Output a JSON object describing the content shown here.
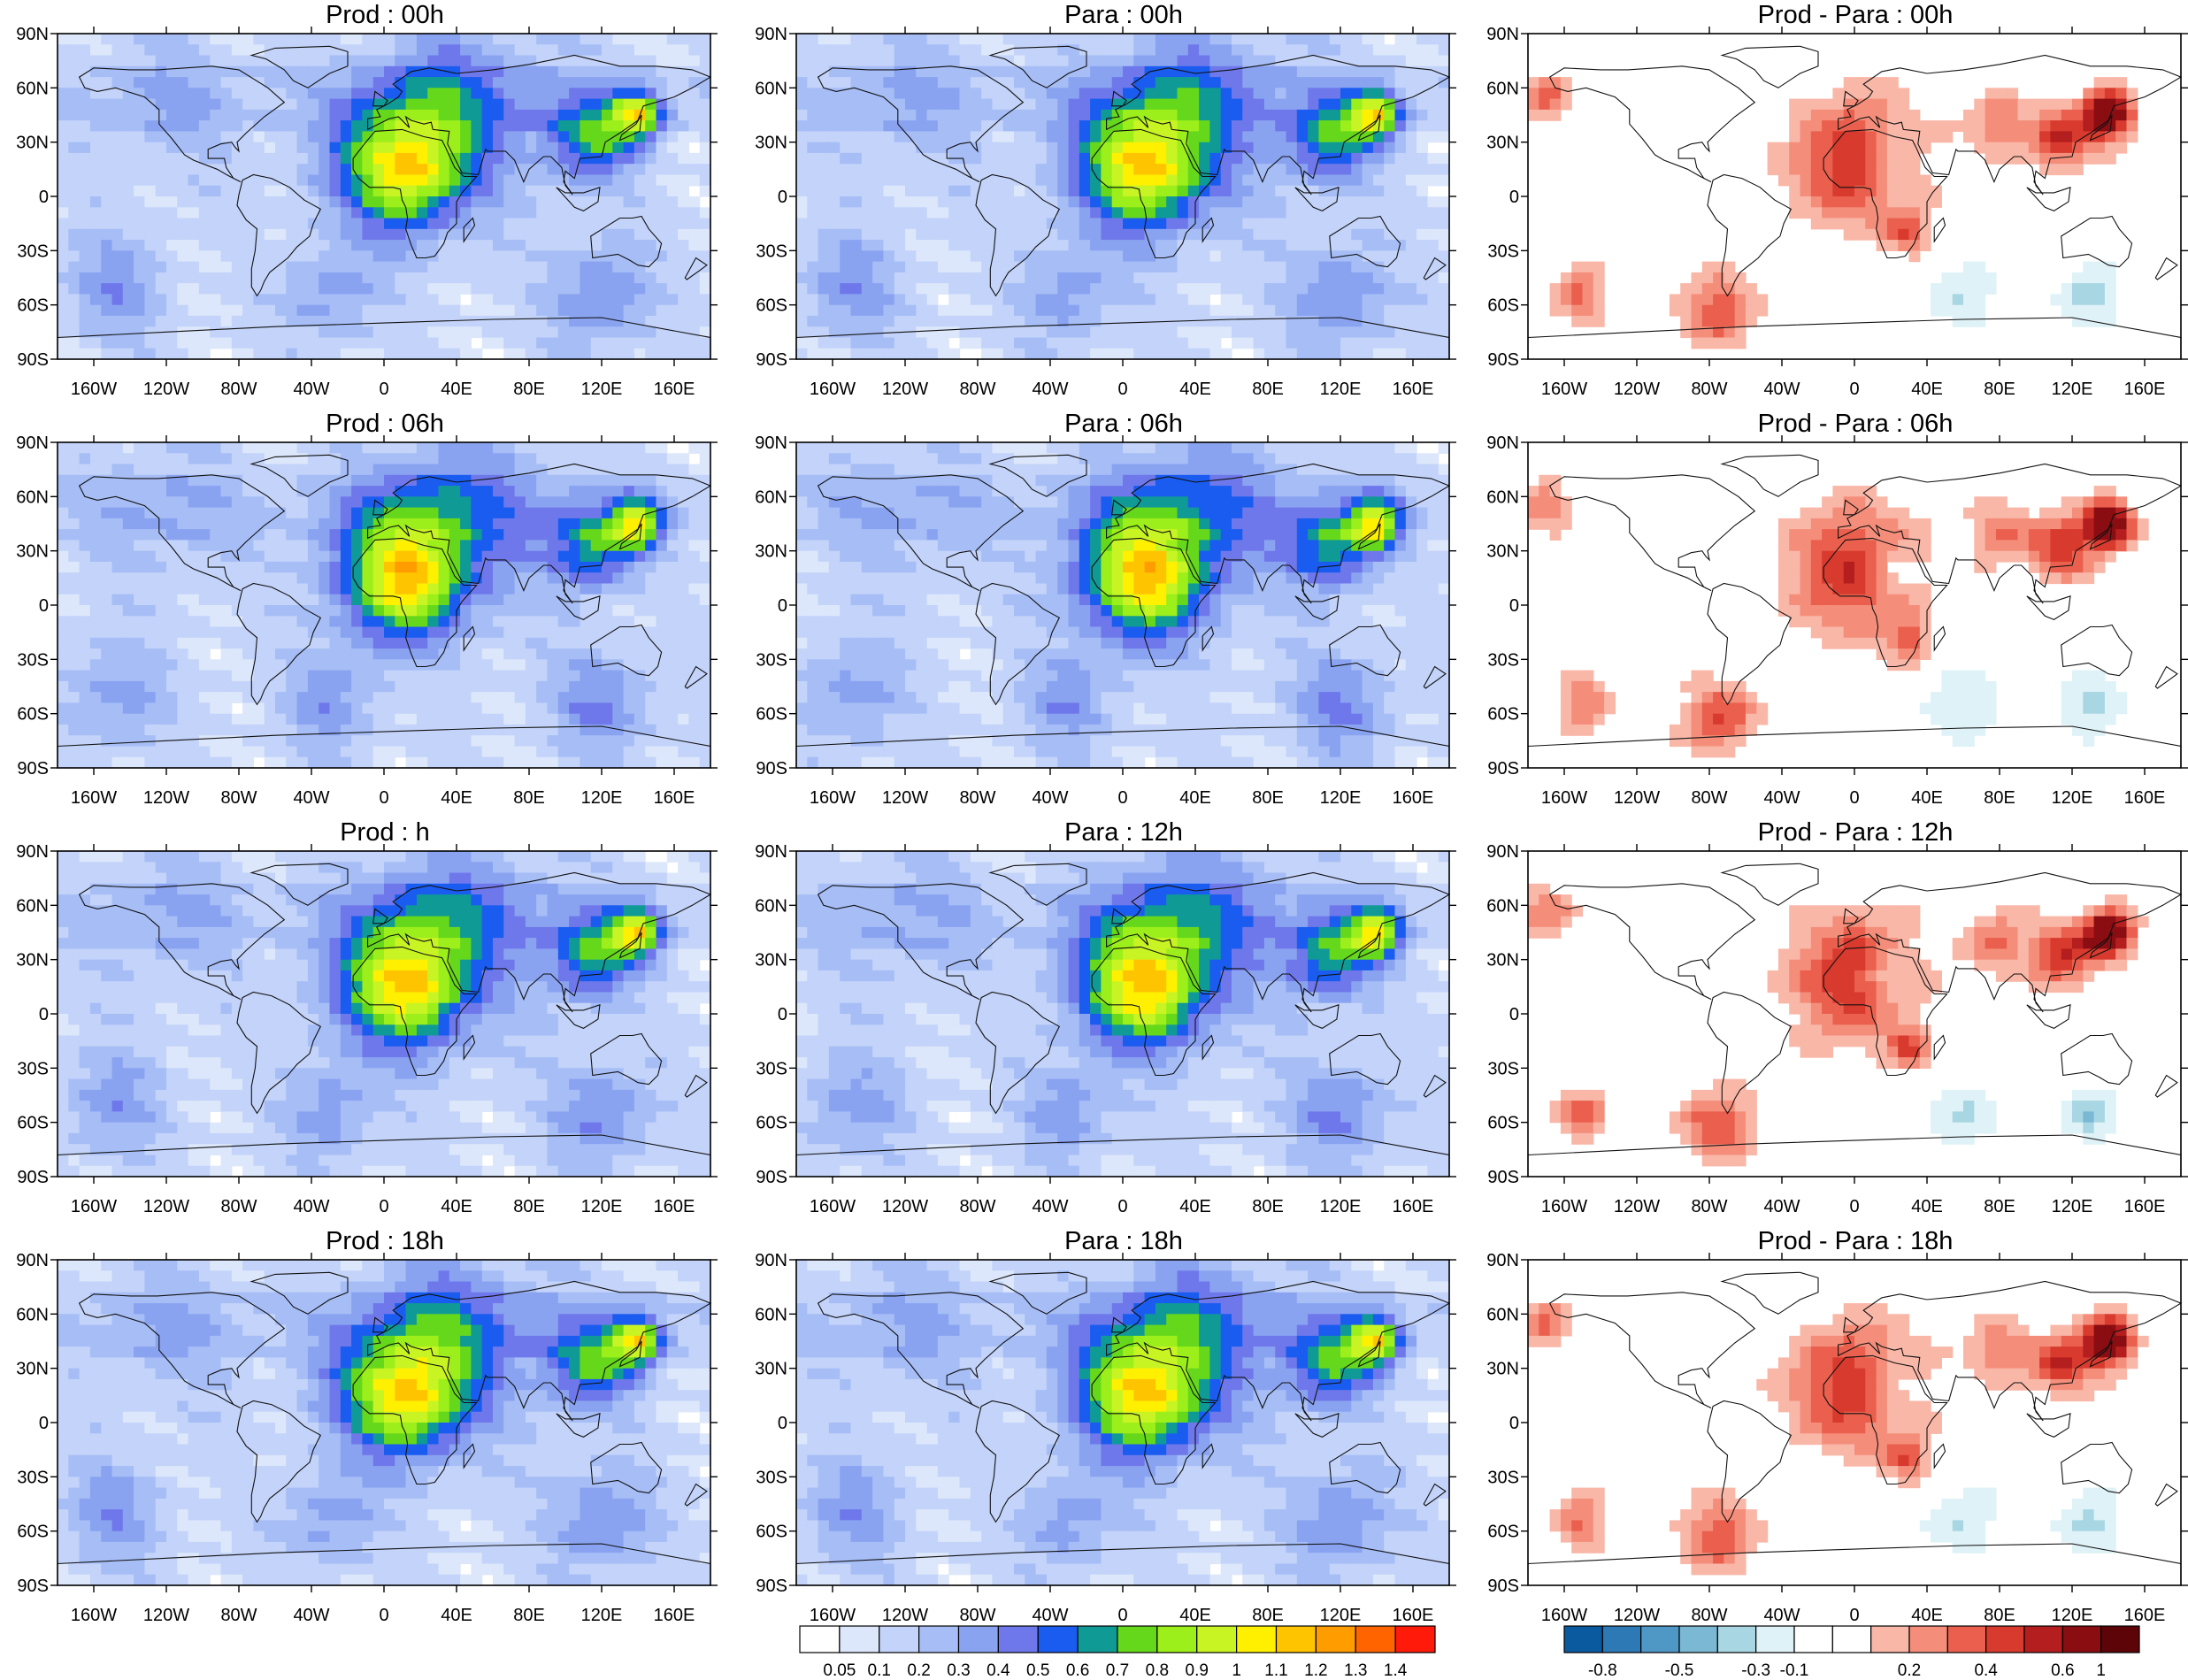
{
  "panels": [
    {
      "title": "Prod : 00h",
      "kind": "field",
      "seed": 11
    },
    {
      "title": "Para : 00h",
      "kind": "field",
      "seed": 12
    },
    {
      "title": "Prod - Para : 00h",
      "kind": "diff",
      "seed": 13
    },
    {
      "title": "Prod : 06h",
      "kind": "field",
      "seed": 21
    },
    {
      "title": "Para : 06h",
      "kind": "field",
      "seed": 22
    },
    {
      "title": "Prod - Para : 06h",
      "kind": "diff",
      "seed": 23
    },
    {
      "title": "Prod : h",
      "kind": "field",
      "seed": 31
    },
    {
      "title": "Para : 12h",
      "kind": "field",
      "seed": 32
    },
    {
      "title": "Prod - Para : 12h",
      "kind": "diff",
      "seed": 33
    },
    {
      "title": "Prod : 18h",
      "kind": "field",
      "seed": 41
    },
    {
      "title": "Para : 18h",
      "kind": "field",
      "seed": 42
    },
    {
      "title": "Prod - Para : 18h",
      "kind": "diff",
      "seed": 43
    }
  ],
  "lat_ticks": [
    "90N",
    "60N",
    "30N",
    "0",
    "30S",
    "60S",
    "90S"
  ],
  "lon_ticks": [
    "160W",
    "120W",
    "80W",
    "40W",
    "0",
    "40E",
    "80E",
    "120E",
    "160E"
  ],
  "field_colorbar": {
    "labels": [
      "0.05",
      "0.1",
      "0.2",
      "0.3",
      "0.4",
      "0.5",
      "0.6",
      "0.7",
      "0.8",
      "0.9",
      "1",
      "1.1",
      "1.2",
      "1.3",
      "1.4"
    ],
    "colors": [
      "#ffffff",
      "#dde7fb",
      "#c3d3f9",
      "#a6bdf6",
      "#8aa3f1",
      "#6f78ea",
      "#1a5cf0",
      "#0f9a96",
      "#66d81c",
      "#9cef1a",
      "#c9f424",
      "#fff000",
      "#ffc400",
      "#ff9c00",
      "#ff6400",
      "#ff1a0a"
    ]
  },
  "diff_colorbar": {
    "labels": [
      "-0.8",
      "-0.5",
      "-0.3",
      "-0.1",
      "0.2",
      "0.4",
      "0.6",
      "1"
    ],
    "colors": [
      "#0a5aa0",
      "#2d79b6",
      "#4f98c6",
      "#7ab8d4",
      "#a8d6e2",
      "#dff2f7",
      "#ffffff",
      "#ffffff",
      "#f9b7a8",
      "#f48e7b",
      "#ea5f4d",
      "#d83a2e",
      "#b51e1e",
      "#8a0d12",
      "#5c0408"
    ]
  }
}
